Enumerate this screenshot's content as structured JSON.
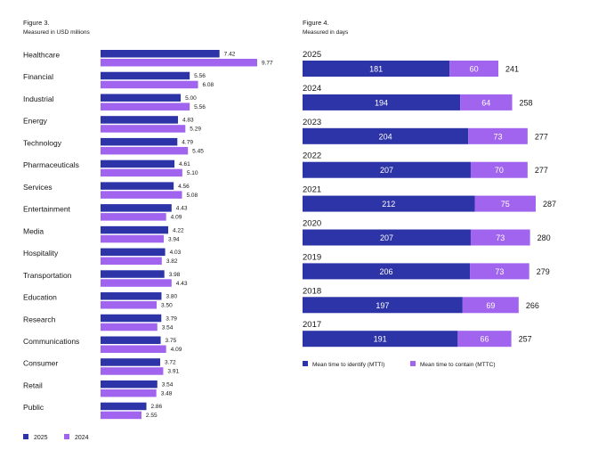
{
  "colors": {
    "primary": "#2d34a8",
    "secondary": "#a064ee",
    "text": "#161616",
    "bar_label": "#ffffff"
  },
  "chart_data": [
    {
      "type": "bar",
      "orientation": "horizontal",
      "figure_label": "Figure 3.",
      "subtitle": "Measured in USD millions",
      "categories": [
        "Healthcare",
        "Financial",
        "Industrial",
        "Energy",
        "Technology",
        "Pharmaceuticals",
        "Services",
        "Entertainment",
        "Media",
        "Hospitality",
        "Transportation",
        "Education",
        "Research",
        "Communications",
        "Consumer",
        "Retail",
        "Public"
      ],
      "series": [
        {
          "name": "2025",
          "values": [
            7.42,
            5.56,
            5.0,
            4.83,
            4.79,
            4.61,
            4.56,
            4.43,
            4.22,
            4.03,
            3.98,
            3.8,
            3.79,
            3.75,
            3.72,
            3.54,
            2.86
          ]
        },
        {
          "name": "2024",
          "values": [
            9.77,
            6.08,
            5.56,
            5.29,
            5.45,
            5.1,
            5.08,
            4.09,
            3.94,
            3.82,
            4.43,
            3.5,
            3.54,
            4.09,
            3.91,
            3.48,
            2.55
          ]
        }
      ],
      "value_labels": [
        [
          "7.42",
          "5.56",
          "5.00",
          "4.83",
          "4.79",
          "4.61",
          "4.56",
          "4.43",
          "4.22",
          "4.03",
          "3.98",
          "3.80",
          "3.79",
          "3.75",
          "3.72",
          "3.54",
          "2.86"
        ],
        [
          "9.77",
          "6.08",
          "5.56",
          "5.29",
          "5.45",
          "5.10",
          "5.08",
          "4.09",
          "3.94",
          "3.82",
          "4.43",
          "3.50",
          "3.54",
          "4.09",
          "3.91",
          "3.48",
          "2.55"
        ]
      ],
      "legend_position": "bottom-left",
      "grid": false
    },
    {
      "type": "bar",
      "orientation": "horizontal",
      "stacked": true,
      "figure_label": "Figure 4.",
      "subtitle": "Measured in days",
      "categories": [
        "2025",
        "2024",
        "2023",
        "2022",
        "2021",
        "2020",
        "2019",
        "2018",
        "2017"
      ],
      "series": [
        {
          "name": "Mean time to identify (MTTI)",
          "values": [
            181,
            194,
            204,
            207,
            212,
            207,
            206,
            197,
            191
          ]
        },
        {
          "name": "Mean time to contain (MTTC)",
          "values": [
            60,
            64,
            73,
            70,
            75,
            73,
            73,
            69,
            66
          ]
        }
      ],
      "totals": [
        241,
        258,
        277,
        277,
        287,
        280,
        279,
        266,
        257
      ],
      "legend_position": "bottom-left",
      "grid": false
    }
  ]
}
